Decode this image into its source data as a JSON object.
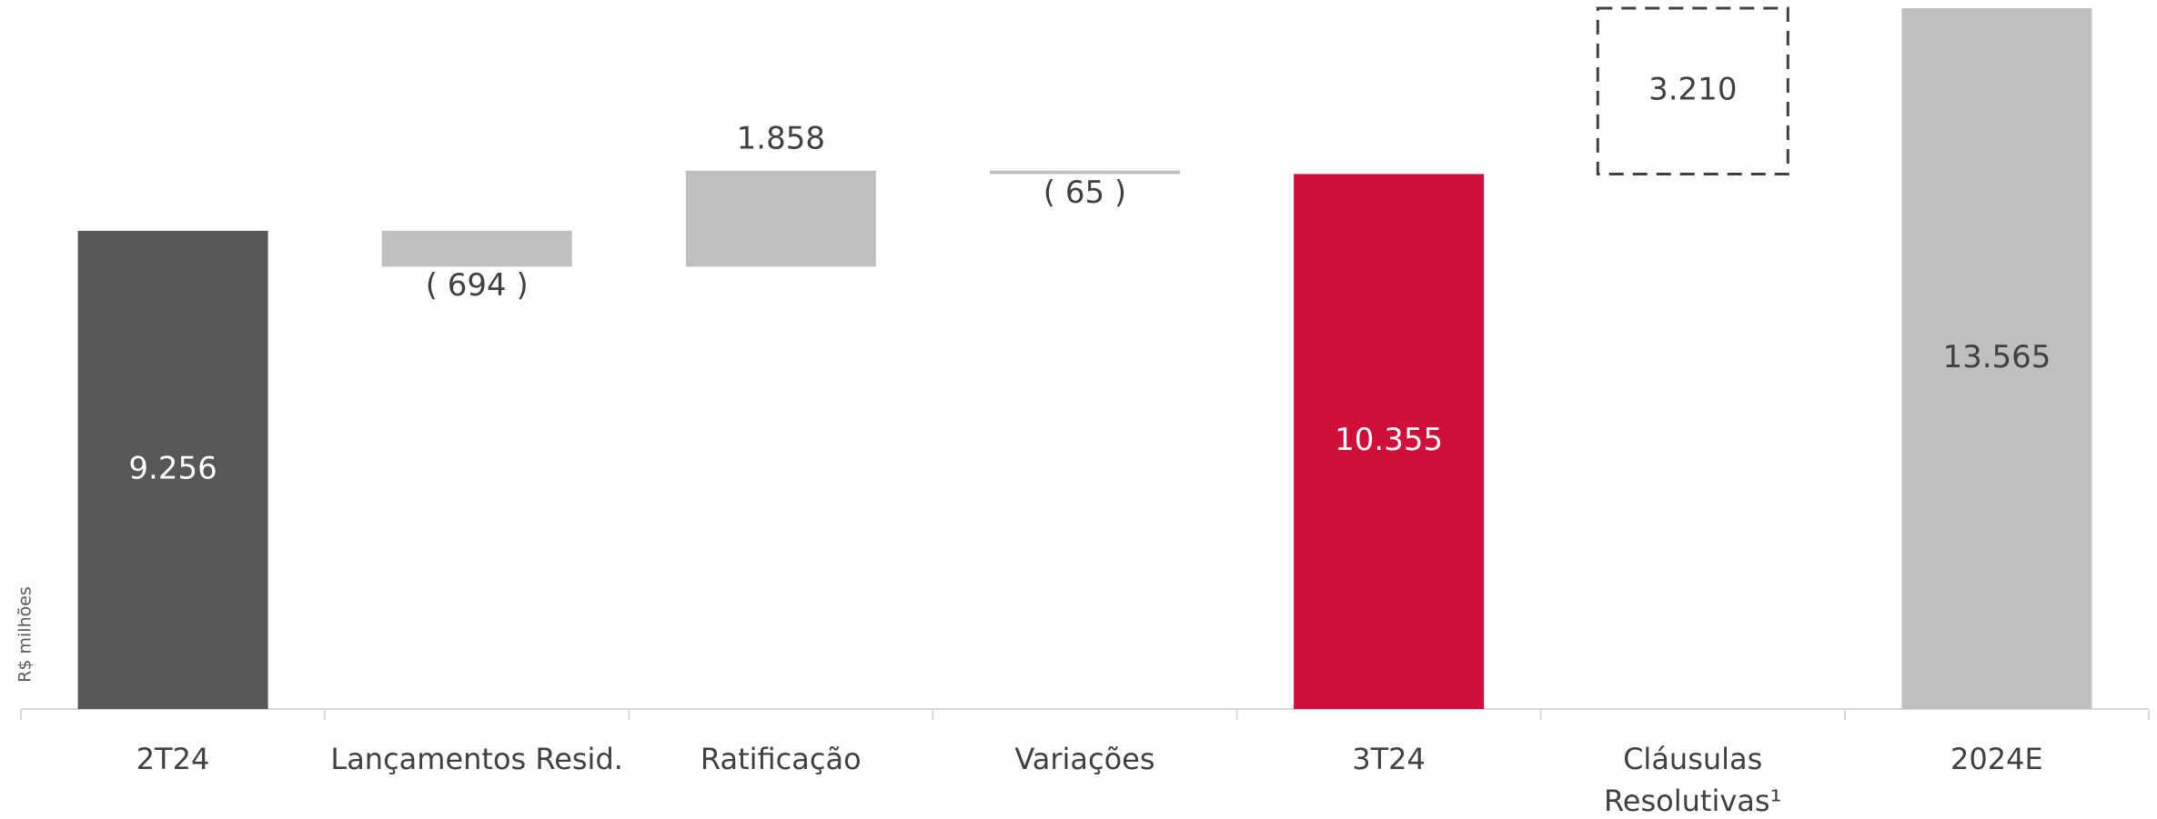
{
  "chart_data": {
    "type": "waterfall",
    "y_label": "R$ milhões",
    "categories": [
      "2T24",
      "Lançamentos Resid.",
      "Ratificação",
      "Variações",
      "3T24",
      "Cláusulas Resolutivas¹",
      "2024E"
    ],
    "values": [
      9256,
      -694,
      1858,
      -65,
      10355,
      3210,
      13565
    ],
    "value_labels": [
      "9.256",
      "( 694 )",
      "1.858",
      "( 65 )",
      "10.355",
      "3.210",
      "13.565"
    ],
    "colors": [
      "#575757",
      "#bfbfbf",
      "#bfbfbf",
      "#bfbfbf",
      "#d0103a",
      "none",
      "#bfbfbf"
    ]
  }
}
